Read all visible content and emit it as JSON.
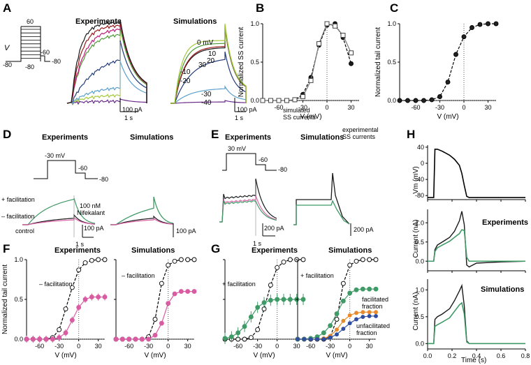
{
  "panels": {
    "A": "A",
    "B": "B",
    "C": "C",
    "D": "D",
    "E": "E",
    "F": "F",
    "G": "G",
    "H": "H"
  },
  "titles": {
    "experiments": "Experiments",
    "simulations": "Simulations"
  },
  "colors": {
    "black": "#1a1a1a",
    "red": "#9b1b1b",
    "magenta": "#c2187a",
    "green": "#4e9a3a",
    "lime": "#a6c93a",
    "navy": "#223a7a",
    "lightblue": "#5aa0cc",
    "purple": "#6a2a8a",
    "facil": "#3f9a66",
    "control": "#d95ca3",
    "orange": "#e88a2a",
    "blue": "#2f4ea0",
    "open": "#ffffff",
    "gray": "#888888"
  },
  "panelA": {
    "v_label": "V",
    "protocol_labels": {
      "top": "60",
      "left": "-80",
      "bottom": "-80",
      "tail": "-60",
      "right": "-80"
    },
    "sim_labels": [
      {
        "text": "0 mV",
        "color": "#000"
      },
      {
        "text": "10",
        "color": "#000"
      },
      {
        "text": "20",
        "color": "#000"
      },
      {
        "text": "30",
        "color": "#000"
      },
      {
        "text": "-10",
        "color": "#000"
      },
      {
        "text": "-20",
        "color": "#000"
      },
      {
        "text": "-30",
        "color": "#000"
      },
      {
        "text": "-40",
        "color": "#000"
      }
    ],
    "scale_current": "100 pA",
    "scale_time": "1 s"
  },
  "panelD": {
    "protocol_labels": {
      "v1": "-30 mV",
      "v2": "-60",
      "v3": "-80"
    },
    "plus": "+ facilitation",
    "minus": "– facilitation",
    "drug": "100 nM",
    "drug2": "Nifekalant",
    "control": "control",
    "scale_current": "100 pA",
    "scale_time": "1 s",
    "scale_current_sim": "100 pA"
  },
  "panelE": {
    "protocol_labels": {
      "v1": "30 mV",
      "v2": "-60",
      "v3": "-80"
    },
    "scale_current": "200 pA",
    "scale_time": "1 s",
    "scale_current_sim": "200 pA"
  },
  "annotations": {
    "sim_ss": [
      "simulated",
      "SS currents"
    ],
    "exp_ss": [
      "experimental",
      "SS currents"
    ],
    "minus_facil": "– facilitation",
    "plus_facil": "+ facilitation",
    "facilitated": [
      "facilitated",
      "fraction"
    ],
    "unfacilitated": [
      "unfacilitated",
      "fraction"
    ]
  },
  "panelH": {
    "vm_label": "Vm (mV)",
    "current_label": "Current (nA)",
    "time_label": "Time (s)",
    "exp_label": "Experiments",
    "sim_label": "Simulations"
  },
  "chart_data": [
    {
      "id": "B",
      "type": "scatter",
      "xlabel": "V (mV)",
      "ylabel": "Normalized SS current",
      "xlim": [
        -80,
        40
      ],
      "ylim": [
        0,
        1
      ],
      "xticks": [
        "-60",
        "-30",
        "0",
        "30"
      ],
      "yticks": [
        "0.0",
        "0.5",
        "1.0"
      ],
      "x": [
        -80,
        -70,
        -60,
        -50,
        -40,
        -30,
        -20,
        -10,
        0,
        10,
        20,
        30
      ],
      "series": [
        {
          "name": "simulated SS currents",
          "values": [
            0,
            0,
            0,
            0,
            0.01,
            0.08,
            0.3,
            0.72,
            0.98,
            1.0,
            0.82,
            0.48
          ]
        },
        {
          "name": "experimental SS currents",
          "values": [
            0,
            0,
            0,
            0,
            0.01,
            0.05,
            0.26,
            0.74,
            1.0,
            0.97,
            0.85,
            0.62
          ]
        }
      ]
    },
    {
      "id": "C",
      "type": "scatter",
      "xlabel": "V (mV)",
      "ylabel": "Normalized tail current",
      "xlim": [
        -80,
        40
      ],
      "ylim": [
        0,
        1
      ],
      "xticks": [
        "-60",
        "-30",
        "0",
        "30"
      ],
      "yticks": [
        "0.0",
        "0.5",
        "1.0"
      ],
      "x": [
        -80,
        -70,
        -60,
        -50,
        -40,
        -30,
        -20,
        -10,
        0,
        10,
        20,
        30,
        40
      ],
      "series": [
        {
          "values": [
            0,
            0,
            0,
            0,
            0.01,
            0.05,
            0.24,
            0.6,
            0.83,
            0.95,
            0.99,
            1.0,
            1.0
          ]
        }
      ]
    },
    {
      "id": "F-exp",
      "type": "scatter",
      "xlabel": "V (mV)",
      "ylabel": "Normalized tail current",
      "xlim": [
        -80,
        40
      ],
      "ylim": [
        0,
        1
      ],
      "xticks": [
        "-60",
        "-30",
        "0",
        "30"
      ],
      "yticks": [
        "0.0",
        "0.5",
        "1.0"
      ],
      "x": [
        -80,
        -70,
        -60,
        -50,
        -40,
        -30,
        -20,
        -10,
        0,
        10,
        20,
        30,
        40
      ],
      "series": [
        {
          "values": [
            0,
            0,
            0,
            0,
            0.02,
            0.12,
            0.38,
            0.65,
            0.87,
            0.96,
            0.99,
            1.0,
            1.0
          ]
        },
        {
          "name": "– facilitation",
          "values": [
            0,
            0,
            0,
            0,
            0,
            0.02,
            0.08,
            0.24,
            0.4,
            0.5,
            0.53,
            0.53,
            0.53
          ]
        }
      ]
    },
    {
      "id": "F-sim",
      "type": "scatter",
      "xlabel": "V (mV)",
      "xlim": [
        -80,
        40
      ],
      "ylim": [
        0,
        1
      ],
      "xticks": [
        "-60",
        "-30",
        "0",
        "30"
      ],
      "x": [
        -80,
        -70,
        -60,
        -50,
        -40,
        -30,
        -20,
        -10,
        0,
        10,
        20,
        30,
        40
      ],
      "series": [
        {
          "values": [
            0,
            0,
            0,
            0,
            0,
            0.03,
            0.25,
            0.7,
            0.93,
            0.98,
            1.0,
            1.0,
            1.0
          ]
        },
        {
          "name": "– facilitation",
          "values": [
            0,
            0,
            0,
            0,
            0,
            0,
            0.05,
            0.2,
            0.45,
            0.57,
            0.6,
            0.6,
            0.6
          ]
        }
      ]
    },
    {
      "id": "G-exp",
      "type": "scatter",
      "xlabel": "V (mV)",
      "xlim": [
        -80,
        40
      ],
      "ylim": [
        0,
        1
      ],
      "xticks": [
        "-60",
        "-30",
        "0",
        "30"
      ],
      "x": [
        -80,
        -70,
        -60,
        -50,
        -40,
        -30,
        -20,
        -10,
        0,
        10,
        20,
        30,
        40
      ],
      "series": [
        {
          "values": [
            0,
            0,
            0,
            0,
            0.02,
            0.12,
            0.38,
            0.68,
            0.9,
            0.97,
            1.0,
            1.0,
            1.0
          ]
        },
        {
          "name": "+ facilitation",
          "values": [
            0.01,
            0.03,
            0.08,
            0.16,
            0.28,
            0.4,
            0.46,
            0.49,
            0.5,
            0.5,
            0.5,
            0.5,
            0.5
          ]
        }
      ]
    },
    {
      "id": "G-sim",
      "type": "scatter",
      "xlabel": "V (mV)",
      "xlim": [
        -80,
        40
      ],
      "ylim": [
        0,
        1
      ],
      "xticks": [
        "-60",
        "-30",
        "0",
        "30"
      ],
      "x": [
        -80,
        -70,
        -60,
        -50,
        -40,
        -30,
        -20,
        -10,
        0,
        10,
        20,
        30,
        40
      ],
      "series": [
        {
          "values": [
            0,
            0,
            0,
            0,
            0,
            0.03,
            0.25,
            0.7,
            0.93,
            0.98,
            1.0,
            1.0,
            1.0
          ]
        },
        {
          "name": "facilitated fraction",
          "values": [
            0,
            0,
            0.01,
            0.03,
            0.08,
            0.17,
            0.32,
            0.48,
            0.58,
            0.62,
            0.63,
            0.63,
            0.63
          ]
        },
        {
          "values": [
            0,
            0,
            0,
            0,
            0.01,
            0.04,
            0.12,
            0.23,
            0.3,
            0.33,
            0.34,
            0.34,
            0.34
          ]
        },
        {
          "name": "unfacilitated fraction",
          "values": [
            0,
            0,
            0,
            0,
            0,
            0.02,
            0.06,
            0.13,
            0.2,
            0.25,
            0.28,
            0.29,
            0.29
          ]
        }
      ]
    },
    {
      "id": "H",
      "type": "line",
      "xlabel": "Time (s)",
      "xlim": [
        0,
        0.8
      ],
      "xticks": [
        "0.0",
        "0.2",
        "0.4",
        "0.6",
        "0.8"
      ],
      "vm_yticks": [
        "-80",
        "-40",
        "0",
        "40"
      ],
      "cur_yticks": [
        "0.0",
        "0.5",
        "1.0"
      ],
      "t": [
        0,
        0.05,
        0.06,
        0.08,
        0.12,
        0.18,
        0.22,
        0.26,
        0.28,
        0.3,
        0.32,
        0.34,
        0.4,
        0.6,
        0.8
      ],
      "vm": [
        -85,
        -85,
        35,
        35,
        30,
        20,
        10,
        -5,
        -25,
        -55,
        -82,
        -85,
        -85,
        -85,
        -85
      ],
      "exp_black": [
        0,
        0,
        0.3,
        0.42,
        0.5,
        0.62,
        0.78,
        1.05,
        1.3,
        0.95,
        -0.1,
        -0.15,
        -0.05,
        -0.02,
        0
      ],
      "exp_green": [
        0,
        0,
        0.25,
        0.35,
        0.42,
        0.52,
        0.62,
        0.72,
        0.82,
        0.8,
        0.1,
        0,
        0,
        0,
        0
      ],
      "sim_black": [
        0,
        0,
        0.45,
        0.5,
        0.55,
        0.65,
        0.8,
        0.98,
        1.08,
        0.7,
        0.05,
        0,
        0,
        0,
        0
      ],
      "sim_green": [
        0,
        0,
        0.32,
        0.35,
        0.4,
        0.48,
        0.6,
        0.72,
        0.76,
        0.55,
        0.03,
        0,
        0,
        0,
        0
      ]
    }
  ]
}
